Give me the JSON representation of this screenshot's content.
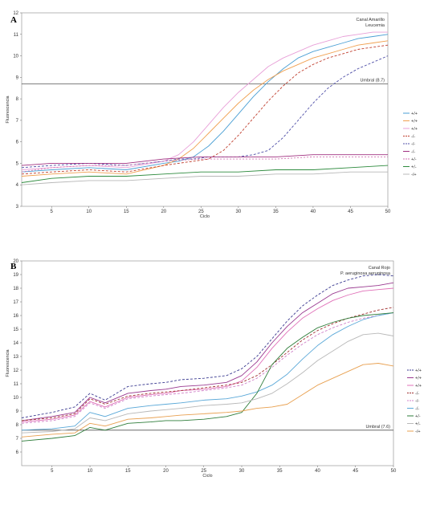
{
  "chart_data": [
    {
      "type": "line",
      "panel_label": "A",
      "annotation_lines": [
        "Canal Amarillo",
        "Leucemia"
      ],
      "xlabel": "Ciclo",
      "ylabel": "Fluorescencia",
      "xlim": [
        1,
        50
      ],
      "ylim": [
        3,
        12
      ],
      "xticks": [
        "5",
        "10",
        "15",
        "20",
        "25",
        "30",
        "35",
        "40",
        "45",
        "50"
      ],
      "yticks": [
        "3",
        "4",
        "5",
        "6",
        "7",
        "8",
        "9",
        "10",
        "11",
        "12"
      ],
      "threshold": {
        "value": 8.7,
        "label": "Umbral (8.7)"
      },
      "legend_labels": [
        "+/+",
        "+/+",
        "+/+",
        "-/-",
        "-/-",
        "-/-",
        "+/-",
        "+/-",
        "-/+"
      ],
      "series": [
        {
          "color": "#4a9fd4",
          "dash": "none",
          "x": [
            1,
            5,
            10,
            15,
            20,
            22,
            24,
            26,
            28,
            30,
            32,
            34,
            36,
            38,
            40,
            42,
            44,
            46,
            48,
            50
          ],
          "y": [
            4.6,
            4.7,
            4.8,
            4.7,
            5.0,
            5.1,
            5.3,
            5.8,
            6.5,
            7.3,
            8.1,
            8.8,
            9.4,
            9.9,
            10.2,
            10.4,
            10.6,
            10.8,
            10.9,
            11.0
          ]
        },
        {
          "color": "#f0a050",
          "dash": "none",
          "x": [
            1,
            5,
            10,
            15,
            20,
            22,
            24,
            26,
            28,
            30,
            32,
            34,
            36,
            38,
            40,
            42,
            44,
            46,
            48,
            50
          ],
          "y": [
            4.4,
            4.5,
            4.6,
            4.5,
            4.9,
            5.2,
            5.7,
            6.4,
            7.1,
            7.8,
            8.4,
            8.9,
            9.3,
            9.6,
            9.9,
            10.1,
            10.3,
            10.5,
            10.6,
            10.7
          ]
        },
        {
          "color": "#e8a0d8",
          "dash": "none",
          "x": [
            1,
            5,
            10,
            15,
            20,
            22,
            24,
            26,
            28,
            30,
            32,
            34,
            36,
            38,
            40,
            42,
            44,
            46,
            48,
            50
          ],
          "y": [
            4.7,
            4.8,
            4.9,
            4.8,
            5.1,
            5.4,
            6.0,
            6.8,
            7.6,
            8.3,
            8.9,
            9.5,
            9.9,
            10.2,
            10.5,
            10.7,
            10.9,
            11.0,
            11.1,
            11.1
          ]
        },
        {
          "color": "#c04030",
          "dash": "3,2",
          "x": [
            1,
            5,
            10,
            15,
            20,
            22,
            24,
            26,
            28,
            30,
            32,
            34,
            36,
            38,
            40,
            42,
            44,
            46,
            48,
            50
          ],
          "y": [
            4.5,
            4.6,
            4.7,
            4.6,
            4.9,
            5.0,
            5.1,
            5.2,
            5.6,
            6.3,
            7.1,
            7.9,
            8.6,
            9.2,
            9.6,
            9.9,
            10.1,
            10.3,
            10.4,
            10.5
          ]
        },
        {
          "color": "#5050a8",
          "dash": "3,2",
          "x": [
            1,
            5,
            10,
            15,
            20,
            22,
            24,
            26,
            28,
            30,
            32,
            34,
            36,
            38,
            40,
            42,
            44,
            46,
            48,
            50
          ],
          "y": [
            4.8,
            4.9,
            5.0,
            4.9,
            5.1,
            5.2,
            5.2,
            5.3,
            5.3,
            5.3,
            5.4,
            5.6,
            6.2,
            7.0,
            7.8,
            8.5,
            9.0,
            9.4,
            9.7,
            10.0
          ]
        },
        {
          "color": "#a03080",
          "dash": "none",
          "x": [
            1,
            5,
            10,
            15,
            20,
            25,
            30,
            35,
            40,
            45,
            50
          ],
          "y": [
            4.9,
            5.0,
            5.0,
            5.0,
            5.2,
            5.3,
            5.3,
            5.3,
            5.4,
            5.4,
            5.4
          ]
        },
        {
          "color": "#d070b0",
          "dash": "2,2",
          "x": [
            1,
            5,
            10,
            15,
            20,
            25,
            30,
            35,
            40,
            45,
            50
          ],
          "y": [
            4.6,
            4.8,
            4.9,
            4.9,
            5.1,
            5.2,
            5.2,
            5.2,
            5.3,
            5.3,
            5.3
          ]
        },
        {
          "color": "#2e8b3e",
          "dash": "none",
          "x": [
            1,
            5,
            10,
            15,
            20,
            25,
            30,
            35,
            40,
            45,
            50
          ],
          "y": [
            4.1,
            4.3,
            4.4,
            4.4,
            4.5,
            4.6,
            4.6,
            4.7,
            4.7,
            4.8,
            4.9
          ]
        },
        {
          "color": "#b8b8b8",
          "dash": "none",
          "x": [
            1,
            5,
            10,
            15,
            20,
            25,
            30,
            35,
            40,
            45,
            50
          ],
          "y": [
            4.0,
            4.1,
            4.2,
            4.2,
            4.3,
            4.4,
            4.4,
            4.5,
            4.5,
            4.6,
            4.6
          ]
        }
      ]
    },
    {
      "type": "line",
      "panel_label": "B",
      "annotation_lines": [
        "Canal Rojo",
        "P. aeruginosa aeruginosa"
      ],
      "xlabel": "Ciclo",
      "ylabel": "Fluorescencia",
      "xlim": [
        1,
        50
      ],
      "ylim": [
        5,
        20
      ],
      "xticks": [
        "5",
        "10",
        "15",
        "20",
        "25",
        "30",
        "35",
        "40",
        "45",
        "50"
      ],
      "yticks": [
        "6",
        "7",
        "8",
        "9",
        "10",
        "11",
        "12",
        "13",
        "14",
        "15",
        "16",
        "17",
        "18",
        "19",
        "20"
      ],
      "threshold": {
        "value": 7.6,
        "label": "Umbral (7.6)"
      },
      "legend_labels": [
        "+/+",
        "+/+",
        "+/+",
        "-/-",
        "-/-",
        "-/-",
        "+/-",
        "+/-",
        "-/+"
      ],
      "series": [
        {
          "color": "#3a3a90",
          "dash": "3,2",
          "x": [
            1,
            5,
            8,
            10,
            12,
            15,
            18,
            20,
            22,
            25,
            28,
            30,
            32,
            34,
            36,
            38,
            40,
            42,
            44,
            46,
            48,
            50
          ],
          "y": [
            8.5,
            8.9,
            9.3,
            10.3,
            9.8,
            10.8,
            11.0,
            11.1,
            11.3,
            11.4,
            11.6,
            12.1,
            13.0,
            14.3,
            15.6,
            16.7,
            17.5,
            18.2,
            18.6,
            18.9,
            19.0,
            18.9
          ]
        },
        {
          "color": "#9a3a90",
          "dash": "none",
          "x": [
            1,
            5,
            8,
            10,
            12,
            15,
            18,
            20,
            22,
            25,
            28,
            30,
            32,
            34,
            36,
            38,
            40,
            42,
            44,
            46,
            48,
            50
          ],
          "y": [
            8.3,
            8.6,
            8.9,
            10.0,
            9.6,
            10.3,
            10.5,
            10.6,
            10.8,
            10.9,
            11.1,
            11.6,
            12.6,
            14.0,
            15.2,
            16.2,
            16.9,
            17.6,
            18.0,
            18.1,
            18.2,
            18.4
          ]
        },
        {
          "color": "#e070b8",
          "dash": "none",
          "x": [
            1,
            5,
            8,
            10,
            12,
            15,
            18,
            20,
            22,
            25,
            28,
            30,
            32,
            34,
            36,
            38,
            40,
            42,
            44,
            46,
            48,
            50
          ],
          "y": [
            8.2,
            8.4,
            8.7,
            9.7,
            9.3,
            10.0,
            10.2,
            10.3,
            10.5,
            10.6,
            10.8,
            11.2,
            12.2,
            13.6,
            14.8,
            15.8,
            16.5,
            17.1,
            17.5,
            17.8,
            17.9,
            18.0
          ]
        },
        {
          "color": "#a03030",
          "dash": "3,2",
          "x": [
            1,
            5,
            8,
            10,
            12,
            15,
            18,
            20,
            22,
            25,
            28,
            30,
            32,
            34,
            36,
            38,
            40,
            42,
            44,
            46,
            48,
            50
          ],
          "y": [
            8.3,
            8.5,
            8.8,
            9.9,
            9.5,
            10.1,
            10.3,
            10.4,
            10.5,
            10.7,
            10.9,
            11.1,
            11.6,
            12.4,
            13.3,
            14.2,
            14.9,
            15.4,
            15.8,
            16.1,
            16.4,
            16.6
          ]
        },
        {
          "color": "#d080c8",
          "dash": "3,2",
          "x": [
            1,
            5,
            8,
            10,
            12,
            15,
            18,
            20,
            22,
            25,
            28,
            30,
            32,
            34,
            36,
            38,
            40,
            42,
            44,
            46,
            48,
            50
          ],
          "y": [
            8.1,
            8.3,
            8.6,
            9.6,
            9.2,
            9.9,
            10.1,
            10.2,
            10.3,
            10.5,
            10.7,
            10.9,
            11.4,
            12.2,
            13.1,
            13.9,
            14.6,
            15.1,
            15.5,
            15.8,
            16.0,
            16.2
          ]
        },
        {
          "color": "#5aa8d8",
          "dash": "none",
          "x": [
            1,
            5,
            8,
            10,
            12,
            15,
            18,
            20,
            22,
            25,
            28,
            30,
            32,
            34,
            36,
            38,
            40,
            42,
            44,
            46,
            48,
            50
          ],
          "y": [
            7.6,
            7.7,
            7.9,
            8.9,
            8.6,
            9.2,
            9.4,
            9.5,
            9.6,
            9.8,
            9.9,
            10.1,
            10.4,
            10.9,
            11.7,
            12.8,
            13.8,
            14.6,
            15.2,
            15.7,
            16.0,
            16.2
          ]
        },
        {
          "color": "#2e7d3a",
          "dash": "none",
          "x": [
            1,
            5,
            8,
            10,
            12,
            15,
            18,
            20,
            22,
            25,
            28,
            30,
            32,
            34,
            36,
            38,
            40,
            42,
            44,
            46,
            48,
            50
          ],
          "y": [
            6.8,
            7.0,
            7.2,
            7.8,
            7.6,
            8.1,
            8.2,
            8.3,
            8.3,
            8.4,
            8.6,
            8.9,
            10.3,
            12.4,
            13.6,
            14.4,
            15.1,
            15.5,
            15.8,
            16.0,
            16.1,
            16.2
          ]
        },
        {
          "color": "#b8b8b8",
          "dash": "none",
          "x": [
            1,
            5,
            8,
            10,
            12,
            15,
            18,
            20,
            22,
            25,
            28,
            30,
            32,
            34,
            36,
            38,
            40,
            42,
            44,
            46,
            48,
            50
          ],
          "y": [
            7.4,
            7.5,
            7.7,
            8.5,
            8.3,
            8.8,
            9.0,
            9.1,
            9.2,
            9.4,
            9.5,
            9.6,
            9.9,
            10.3,
            11.0,
            11.8,
            12.7,
            13.4,
            14.1,
            14.6,
            14.7,
            14.5
          ]
        },
        {
          "color": "#e8a050",
          "dash": "none",
          "x": [
            1,
            5,
            8,
            10,
            12,
            15,
            18,
            20,
            22,
            25,
            28,
            30,
            32,
            34,
            36,
            38,
            40,
            42,
            44,
            46,
            48,
            50
          ],
          "y": [
            7.1,
            7.3,
            7.4,
            8.1,
            7.9,
            8.4,
            8.5,
            8.6,
            8.7,
            8.8,
            8.9,
            9.0,
            9.2,
            9.3,
            9.5,
            10.2,
            10.9,
            11.4,
            11.9,
            12.4,
            12.5,
            12.3
          ]
        }
      ]
    }
  ]
}
